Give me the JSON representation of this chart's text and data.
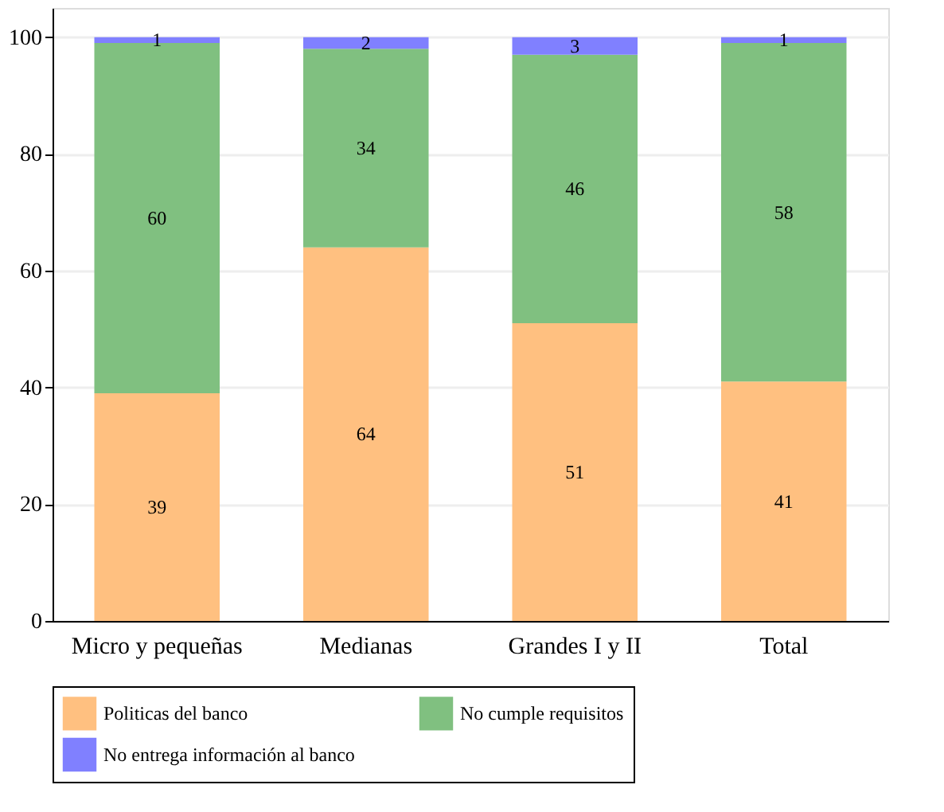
{
  "chart_data": {
    "type": "bar",
    "stacked": true,
    "categories": [
      "Micro y pequeñas",
      "Medianas",
      "Grandes I y II",
      "Total"
    ],
    "series": [
      {
        "name": "Politicas del banco",
        "color": "#ffc080",
        "values": [
          39,
          64,
          51,
          41
        ]
      },
      {
        "name": "No cumple requisitos",
        "color": "#80c080",
        "values": [
          60,
          34,
          46,
          58
        ]
      },
      {
        "name": "No entrega información al banco",
        "color": "#8080ff",
        "values": [
          1,
          2,
          3,
          1
        ]
      }
    ],
    "ylim": [
      0,
      105
    ],
    "yticks": [
      0,
      20,
      40,
      60,
      80,
      100
    ],
    "grid": "y",
    "legend": "bottom",
    "data_labels": true
  }
}
